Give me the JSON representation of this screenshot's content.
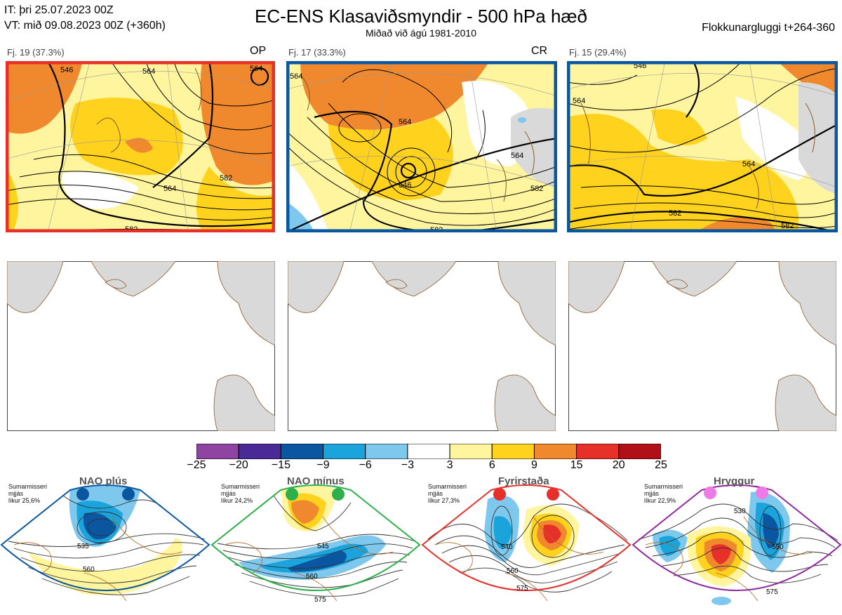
{
  "header": {
    "it_line": "IT: þri 25.07.2023 00Z",
    "vt_line": "VT: mið 09.08.2023 00Z  (+360h)",
    "title": "EC-ENS Klasaviðsmyndir - 500 hPa hæð",
    "subtitle": "Miðað við ágú 1981-2010",
    "window": "Flokkunargluggi t+264-360"
  },
  "clusters": [
    {
      "label": "Fj. 19 (37.3%)",
      "tag": "OP",
      "frame_color": "#e8302a",
      "contours": [
        "546",
        "564",
        "564",
        "582",
        "564",
        "582"
      ]
    },
    {
      "label": "Fj. 17 (33.3%)",
      "tag": "CR",
      "frame_color": "#0a56a0",
      "contours": [
        "564",
        "546",
        "564",
        "564",
        "582",
        "582"
      ]
    },
    {
      "label": "Fj. 15 (29.4%)",
      "tag": "",
      "frame_color": "#0a56a0",
      "contours": [
        "546",
        "564",
        "564",
        "582",
        "582"
      ]
    }
  ],
  "colorbar": {
    "colors": [
      "#8e44a0",
      "#4a2a96",
      "#0a56a0",
      "#1ba3dc",
      "#7ec8ee",
      "#ffffff",
      "#fff59e",
      "#ffd21e",
      "#f0882e",
      "#e8302a",
      "#b01016"
    ],
    "ticks": [
      "−25",
      "−20",
      "−15",
      "−9",
      "−6",
      "−3",
      "3",
      "6",
      "9",
      "15",
      "20",
      "25"
    ]
  },
  "regimes": [
    {
      "name": "NAO plús",
      "season": "Sumarmisseri",
      "mean": "mjjás",
      "prob": "líkur 25,6%",
      "dot_color": "#0a56a0",
      "frame_color": "#0a56a0",
      "contours": [
        "535",
        "560"
      ]
    },
    {
      "name": "NAO mínus",
      "season": "Sumarmisseri",
      "mean": "mjjás",
      "prob": "líkur 24,2%",
      "dot_color": "#2db04b",
      "frame_color": "#2db04b",
      "contours": [
        "545",
        "560",
        "575"
      ]
    },
    {
      "name": "Fyrirstaða",
      "season": "Sumarmisseri",
      "mean": "mjjás",
      "prob": "líkur 27,3%",
      "dot_color": "#e8302a",
      "frame_color": "#e8302a",
      "contours": [
        "540",
        "560",
        "575"
      ]
    },
    {
      "name": "Hryggur",
      "season": "Sumarmisseri",
      "mean": "mjjás",
      "prob": "líkur 22,9%",
      "dot_color": "#ee7ae8",
      "frame_color": "#8e2a9a",
      "contours": [
        "530",
        "550",
        "575"
      ]
    }
  ]
}
